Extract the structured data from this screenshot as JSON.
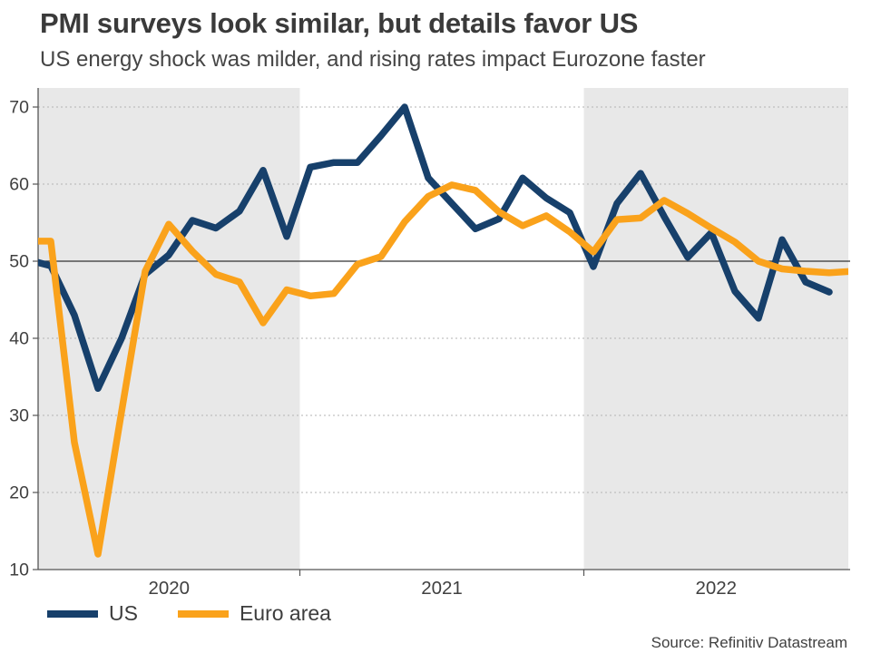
{
  "header": {
    "title": "PMI surveys look similar, but details favor US",
    "subtitle": "US energy shock was milder, and rising rates impact Eurozone faster"
  },
  "legend": {
    "items": [
      {
        "label": "US",
        "color": "#17406B"
      },
      {
        "label": "Euro area",
        "color": "#FAA21B"
      }
    ]
  },
  "source": "Source: Refinitiv Datastream",
  "chart_data": {
    "type": "line",
    "title": "PMI surveys look similar, but details favor US",
    "subtitle": "US energy shock was milder, and rising rates impact Eurozone faster",
    "x_unit": "month",
    "x_start": "2020-01",
    "x_tick_labels": [
      "2020",
      "2021",
      "2022"
    ],
    "y_ticks": [
      10,
      20,
      30,
      40,
      50,
      60,
      70
    ],
    "ylim": [
      10,
      72.5
    ],
    "reference_line": 50,
    "grid": "dotted horizontal at 20,30,40,60,70; solid line at 50",
    "shaded_year_bands": [
      "2020",
      "2022"
    ],
    "band_color": "#e8e8e8",
    "legend_position": "bottom-left",
    "series": [
      {
        "name": "US",
        "color": "#17406B",
        "months": "2020-01 to 2022-11",
        "values": [
          50.2,
          49.4,
          43.0,
          33.5,
          40.0,
          48.3,
          50.8,
          55.3,
          54.3,
          56.5,
          61.8,
          53.2,
          62.2,
          62.8,
          62.8,
          66.3,
          70.0,
          60.8,
          57.5,
          54.2,
          55.5,
          60.8,
          58.2,
          56.3,
          49.3,
          57.5,
          61.4,
          55.8,
          50.5,
          53.7,
          46.1,
          42.6,
          52.8,
          47.3,
          46.0
        ]
      },
      {
        "name": "Euro area",
        "color": "#FAA21B",
        "months": "2020-01 to 2022-12",
        "values": [
          52.6,
          52.6,
          26.5,
          12.0,
          30.5,
          48.7,
          54.8,
          51.3,
          48.3,
          47.3,
          42.0,
          46.3,
          45.5,
          45.8,
          49.6,
          50.6,
          55.1,
          58.4,
          59.9,
          59.2,
          56.4,
          54.6,
          55.9,
          53.8,
          51.2,
          55.4,
          55.6,
          57.9,
          56.2,
          54.3,
          52.5,
          50.0,
          49.0,
          48.7,
          48.5,
          48.7
        ]
      }
    ]
  }
}
